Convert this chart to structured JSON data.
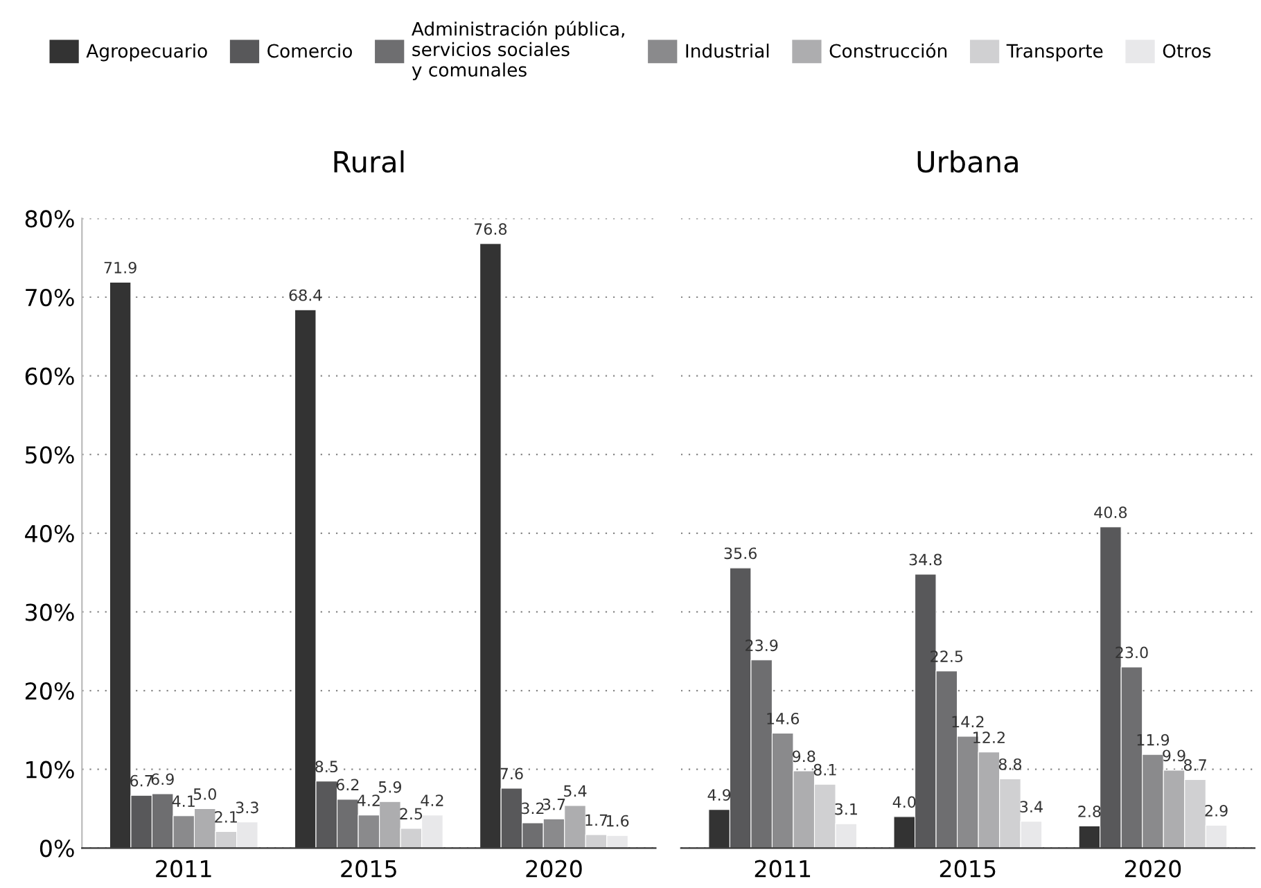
{
  "chart_data": [
    {
      "type": "bar",
      "title": "Rural",
      "categories": [
        "2011",
        "2015",
        "2020"
      ],
      "series": [
        {
          "name": "Agropecuario",
          "color": "#333333",
          "values": [
            71.9,
            68.4,
            76.8
          ],
          "value_labels": [
            "71.9",
            "68.4",
            "76.8"
          ]
        },
        {
          "name": "Comercio",
          "color": "#58585a",
          "values": [
            6.7,
            8.5,
            7.6
          ],
          "value_labels": [
            "6.7",
            "8.5",
            "7.6"
          ]
        },
        {
          "name": "Administración pública,\nservicios sociales\ny comunales",
          "color": "#6e6e70",
          "values": [
            6.9,
            6.2,
            3.2
          ],
          "value_labels": [
            "6.9",
            "6.2",
            "3.2"
          ]
        },
        {
          "name": "Industrial",
          "color": "#8a8a8c",
          "values": [
            4.1,
            4.2,
            3.7
          ],
          "value_labels": [
            "4.1",
            "4.2",
            "3.7"
          ]
        },
        {
          "name": "Construcción",
          "color": "#adadaf",
          "values": [
            5.0,
            5.9,
            5.4
          ],
          "value_labels": [
            "5.0",
            "5.9",
            "5.4"
          ]
        },
        {
          "name": "Transporte",
          "color": "#d0d0d2",
          "values": [
            2.1,
            2.5,
            1.7
          ],
          "value_labels": [
            "2.1",
            "2.5",
            "1.7"
          ]
        },
        {
          "name": "Otros",
          "color": "#e8e8ea",
          "values": [
            3.3,
            4.2,
            1.6
          ],
          "value_labels": [
            "3.3",
            "4.2",
            "1.6"
          ]
        }
      ],
      "ylim": [
        0,
        80
      ],
      "yticks": [
        {
          "value": 0,
          "label": "0%"
        },
        {
          "value": 10,
          "label": "10%"
        },
        {
          "value": 20,
          "label": "20%"
        },
        {
          "value": 30,
          "label": "30%"
        },
        {
          "value": 40,
          "label": "40%"
        },
        {
          "value": 50,
          "label": "50%"
        },
        {
          "value": 60,
          "label": "60%"
        },
        {
          "value": 70,
          "label": "70%"
        },
        {
          "value": 80,
          "label": "80%"
        }
      ],
      "grid": "y",
      "legend": "top"
    },
    {
      "type": "bar",
      "title": "Urbana",
      "categories": [
        "2011",
        "2015",
        "2020"
      ],
      "series": [
        {
          "color": "#333333",
          "values": [
            4.9,
            4.0,
            2.8
          ],
          "value_labels": [
            "4.9",
            "4.0",
            "2.8"
          ]
        },
        {
          "color": "#58585a",
          "values": [
            35.6,
            34.8,
            40.8
          ],
          "value_labels": [
            "35.6",
            "34.8",
            "40.8"
          ]
        },
        {
          "color": "#6e6e70",
          "values": [
            23.9,
            22.5,
            23.0
          ],
          "value_labels": [
            "23.9",
            "22.5",
            "23.0"
          ]
        },
        {
          "color": "#8a8a8c",
          "values": [
            14.6,
            14.2,
            11.9
          ],
          "value_labels": [
            "14.6",
            "14.2",
            "11.9"
          ]
        },
        {
          "color": "#adadaf",
          "values": [
            9.8,
            12.2,
            9.9
          ],
          "value_labels": [
            "9.8",
            "12.2",
            "9.9"
          ]
        },
        {
          "color": "#d0d0d2",
          "values": [
            8.1,
            8.8,
            8.7
          ],
          "value_labels": [
            "8.1",
            "8.8",
            "8.7"
          ]
        },
        {
          "color": "#e8e8ea",
          "values": [
            3.1,
            3.4,
            2.9
          ],
          "value_labels": [
            "3.1",
            "3.4",
            "2.9"
          ]
        }
      ],
      "ylim": [
        0,
        80
      ],
      "yticks": [
        {
          "value": 0,
          "label": null
        },
        {
          "value": 10,
          "label": null
        },
        {
          "value": 20,
          "label": null
        },
        {
          "value": 30,
          "label": null
        },
        {
          "value": 40,
          "label": null
        },
        {
          "value": 50,
          "label": null
        },
        {
          "value": 60,
          "label": null
        },
        {
          "value": 70,
          "label": null
        },
        {
          "value": 80,
          "label": null
        }
      ],
      "grid": "y",
      "tick_labels": "x"
    }
  ]
}
